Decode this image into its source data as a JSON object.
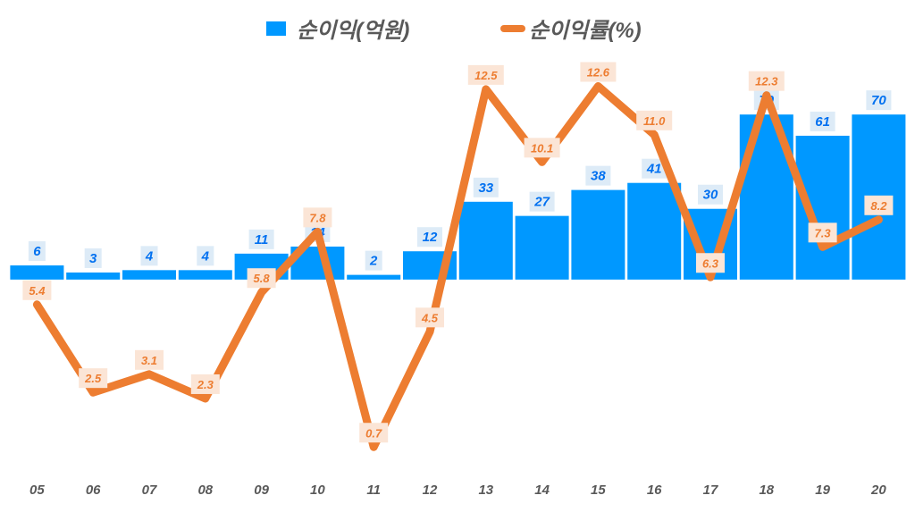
{
  "chart_data": {
    "type": "bar+line",
    "categories": [
      "05",
      "06",
      "07",
      "08",
      "09",
      "10",
      "11",
      "12",
      "13",
      "14",
      "15",
      "16",
      "17",
      "18",
      "19",
      "20"
    ],
    "series": [
      {
        "name": "순이익(억원)",
        "type": "bar",
        "axis": "left",
        "color": "#0098FF",
        "values": [
          6,
          3,
          4,
          4,
          11,
          14,
          2,
          12,
          33,
          27,
          38,
          41,
          30,
          70,
          61,
          70
        ]
      },
      {
        "name": "순이익률(%)",
        "type": "line",
        "axis": "right",
        "color": "#ED7D31",
        "values": [
          5.4,
          2.5,
          3.1,
          2.3,
          5.8,
          7.8,
          0.7,
          4.5,
          12.5,
          10.1,
          12.6,
          11.0,
          6.3,
          12.3,
          7.3,
          8.2
        ]
      }
    ],
    "bar_labels": [
      "6",
      "3",
      "4",
      "4",
      "11",
      "14",
      "2",
      "12",
      "33",
      "27",
      "38",
      "41",
      "30",
      "70",
      "61",
      "70"
    ],
    "line_labels": [
      "5.4",
      "2.5",
      "3.1",
      "2.3",
      "5.8",
      "7.8",
      "0.7",
      "4.5",
      "12.5",
      "10.1",
      "12.6",
      "11.0",
      "6.3",
      "12.3",
      "7.3",
      "8.2"
    ],
    "bar_ylim": [
      -80,
      100
    ],
    "line_ylim": [
      0,
      14
    ],
    "grid": false,
    "axes_visible": false,
    "legend_position": "top"
  }
}
